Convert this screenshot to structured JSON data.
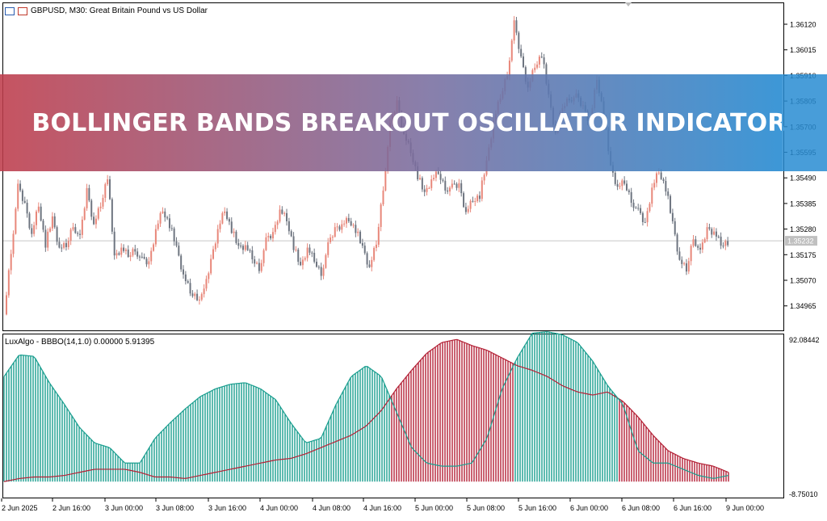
{
  "header": {
    "symbol_line": "GBPUSD, M30:  Great Britain Pound vs US Dollar"
  },
  "oscillator": {
    "label": "LuxAlgo - BBBO(14,1.0) 0.00000 5.91395",
    "scale_top": "92.08442",
    "scale_bottom": "-8.75010"
  },
  "banner": {
    "text": "BOLLINGER BANDS BREAKOUT OSCILLATOR INDICATOR"
  },
  "colors": {
    "bull": "#e8877a",
    "bear": "#6e7580",
    "osc_up": "#1a9e8f",
    "osc_down": "#b32035",
    "grid": "#c8c8c8"
  },
  "chart_data": {
    "type": "candlestick",
    "price_axis_ticks": [
      "1.36120",
      "1.36015",
      "1.35910",
      "1.35805",
      "1.35700",
      "1.35595",
      "1.35490",
      "1.35385",
      "1.35280",
      "1.35175",
      "1.35070",
      "1.34965"
    ],
    "current_price": "1.35232",
    "time_axis_labels": [
      "2 Jun 2025",
      "2 Jun 16:00",
      "3 Jun 00:00",
      "3 Jun 08:00",
      "3 Jun 16:00",
      "4 Jun 00:00",
      "4 Jun 08:00",
      "4 Jun 16:00",
      "5 Jun 00:00",
      "5 Jun 08:00",
      "5 Jun 16:00",
      "6 Jun 00:00",
      "6 Jun 08:00",
      "6 Jun 16:00",
      "9 Jun 00:00"
    ],
    "close_path": [
      1.3493,
      1.3519,
      1.3545,
      1.3538,
      1.3526,
      1.3538,
      1.3522,
      1.3532,
      1.352,
      1.3521,
      1.353,
      1.3524,
      1.3544,
      1.353,
      1.3538,
      1.355,
      1.3516,
      1.352,
      1.3517,
      1.352,
      1.3515,
      1.3514,
      1.3528,
      1.3536,
      1.353,
      1.352,
      1.3509,
      1.3502,
      1.35,
      1.3502,
      1.3515,
      1.3528,
      1.3536,
      1.3528,
      1.352,
      1.3521,
      1.3516,
      1.3512,
      1.3523,
      1.3526,
      1.3536,
      1.3532,
      1.3521,
      1.3512,
      1.352,
      1.3515,
      1.351,
      1.3521,
      1.3528,
      1.353,
      1.3532,
      1.3528,
      1.352,
      1.3512,
      1.3522,
      1.3545,
      1.357,
      1.358,
      1.3567,
      1.356,
      1.355,
      1.3542,
      1.3548,
      1.3551,
      1.3545,
      1.3545,
      1.3546,
      1.3535,
      1.354,
      1.3542,
      1.3555,
      1.3572,
      1.3582,
      1.3592,
      1.3612,
      1.3598,
      1.3586,
      1.3595,
      1.36,
      1.3582,
      1.3567,
      1.3578,
      1.3582,
      1.3582,
      1.3578,
      1.3572,
      1.359,
      1.3575,
      1.3553,
      1.3545,
      1.3547,
      1.354,
      1.3535,
      1.353,
      1.3545,
      1.3552,
      1.3545,
      1.353,
      1.3515,
      1.3511,
      1.3525,
      1.3518,
      1.3528,
      1.3527,
      1.3522,
      1.3523
    ],
    "oscillator_bull": [
      68,
      82,
      81,
      64,
      50,
      35,
      25,
      22,
      12,
      12,
      28,
      38,
      47,
      55,
      60,
      63,
      64,
      60,
      53,
      38,
      25,
      28,
      50,
      68,
      75,
      68,
      45,
      22,
      12,
      10,
      10,
      12,
      28,
      60,
      80,
      96,
      97,
      95,
      90,
      78,
      62,
      50,
      20,
      12,
      12,
      8,
      4,
      2,
      4
    ],
    "oscillator_bear": [
      0,
      2,
      3,
      3,
      4,
      6,
      8,
      8,
      8,
      6,
      3,
      3,
      2,
      4,
      6,
      8,
      10,
      12,
      14,
      15,
      18,
      22,
      26,
      30,
      36,
      46,
      60,
      72,
      83,
      90,
      92,
      88,
      85,
      80,
      75,
      72,
      68,
      62,
      58,
      56,
      58,
      52,
      42,
      30,
      20,
      15,
      12,
      10,
      6
    ],
    "oscillator_range": [
      -8.7501,
      92.08442
    ]
  }
}
